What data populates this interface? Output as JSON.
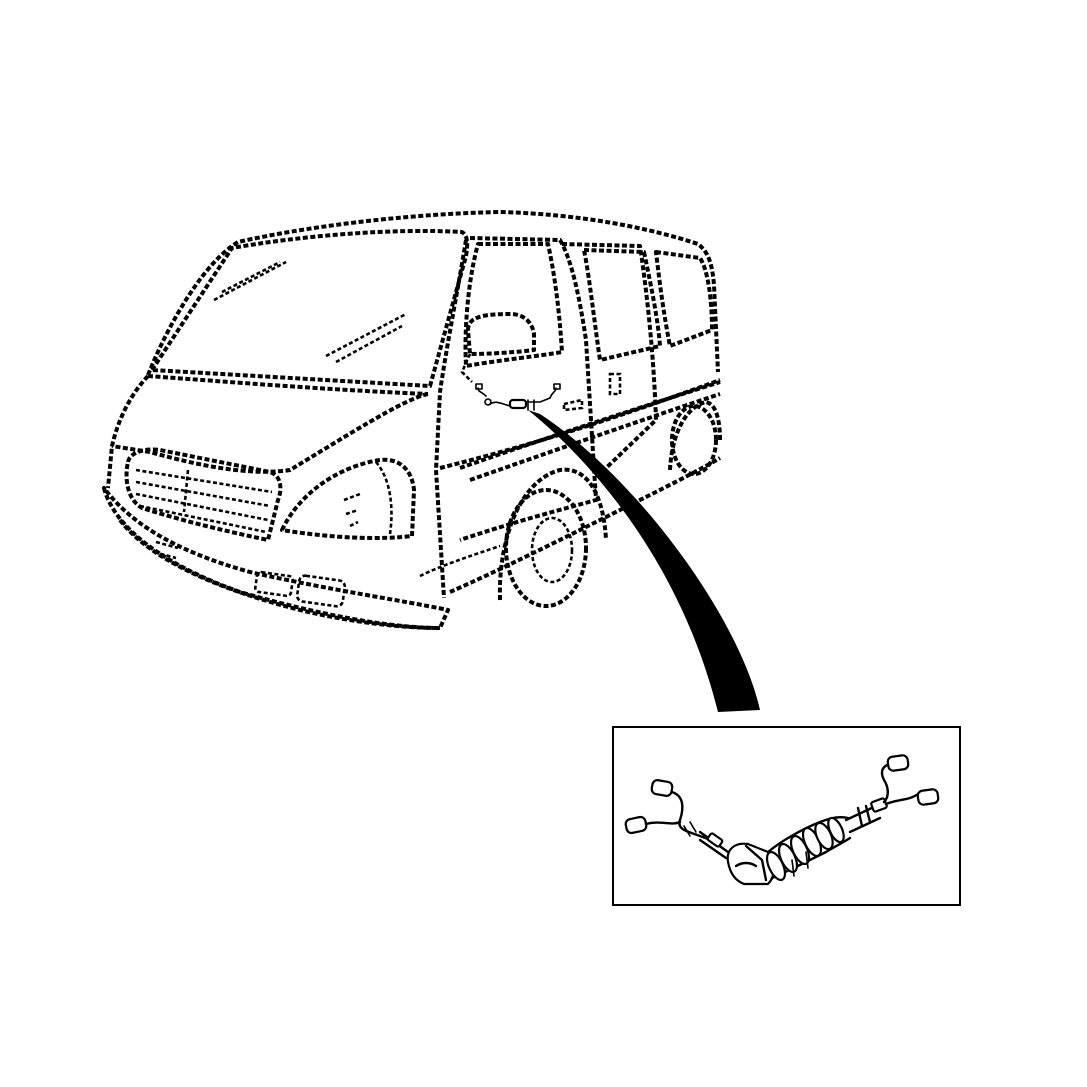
{
  "figure": {
    "subject": "van-body",
    "detail_part": "wiring-harness",
    "colors": {
      "line": "#000000",
      "background": "#ffffff"
    }
  }
}
